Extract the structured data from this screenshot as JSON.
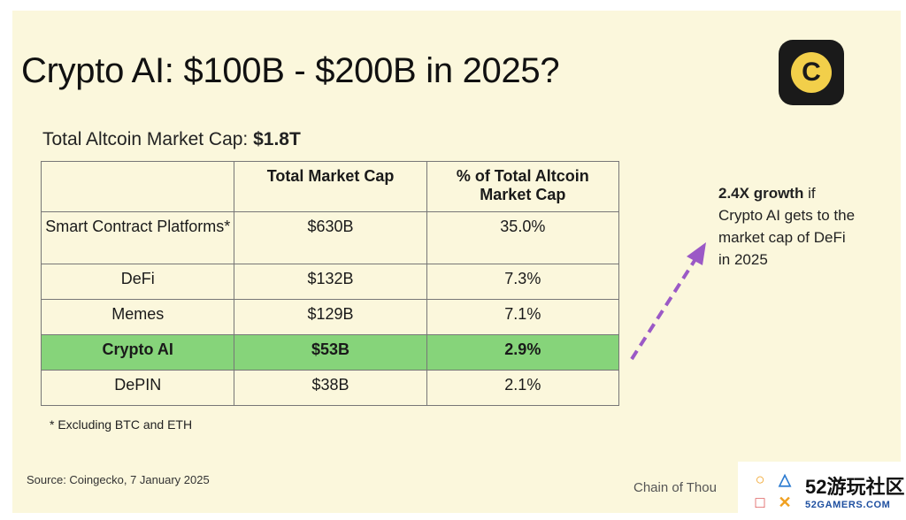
{
  "title": "Crypto AI: $100B - $200B in 2025?",
  "logo_letter": "C",
  "subtitle": {
    "label": "Total Altcoin Market Cap: ",
    "value": "$1.8T"
  },
  "table": {
    "headers": [
      "",
      "Total Market Cap",
      "% of Total Altcoin Market Cap"
    ],
    "rows": [
      {
        "name": "Smart Contract Platforms*",
        "cap": "$630B",
        "pct": "35.0%"
      },
      {
        "name": "DeFi",
        "cap": "$132B",
        "pct": "7.3%"
      },
      {
        "name": "Memes",
        "cap": "$129B",
        "pct": "7.1%"
      },
      {
        "name": "Crypto AI",
        "cap": "$53B",
        "pct": "2.9%",
        "highlight": true
      },
      {
        "name": "DePIN",
        "cap": "$38B",
        "pct": "2.1%"
      }
    ]
  },
  "footnote": "* Excluding BTC and ETH",
  "annotation": {
    "bold": "2.4X growth",
    "rest": " if Crypto AI gets to the market cap of DeFi in 2025"
  },
  "source": "Source: Coingecko, 7 January 2025",
  "brand": "Chain of Thou",
  "watermark": {
    "title": "52游玩社区",
    "subtitle": "52GAMERS.COM"
  },
  "colors": {
    "background": "#fbf7dc",
    "highlight": "#86d47a",
    "arrow": "#9b59c6",
    "logo": "#f2cf4a"
  }
}
